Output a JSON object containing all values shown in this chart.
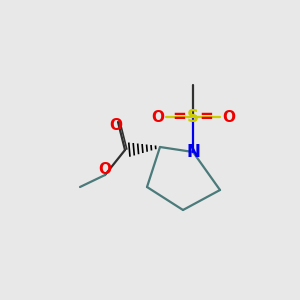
{
  "background_color": "#e8e8e8",
  "ring_color": "#4a7a7a",
  "n_color": "#0000ee",
  "s_color": "#cccc00",
  "o_color": "#ee0000",
  "c_color": "#303030",
  "bond_lw": 1.6,
  "figsize": [
    3.0,
    3.0
  ],
  "dpi": 100,
  "font_sizes": {
    "N": 12,
    "S": 12,
    "O": 11,
    "equals": 11
  }
}
